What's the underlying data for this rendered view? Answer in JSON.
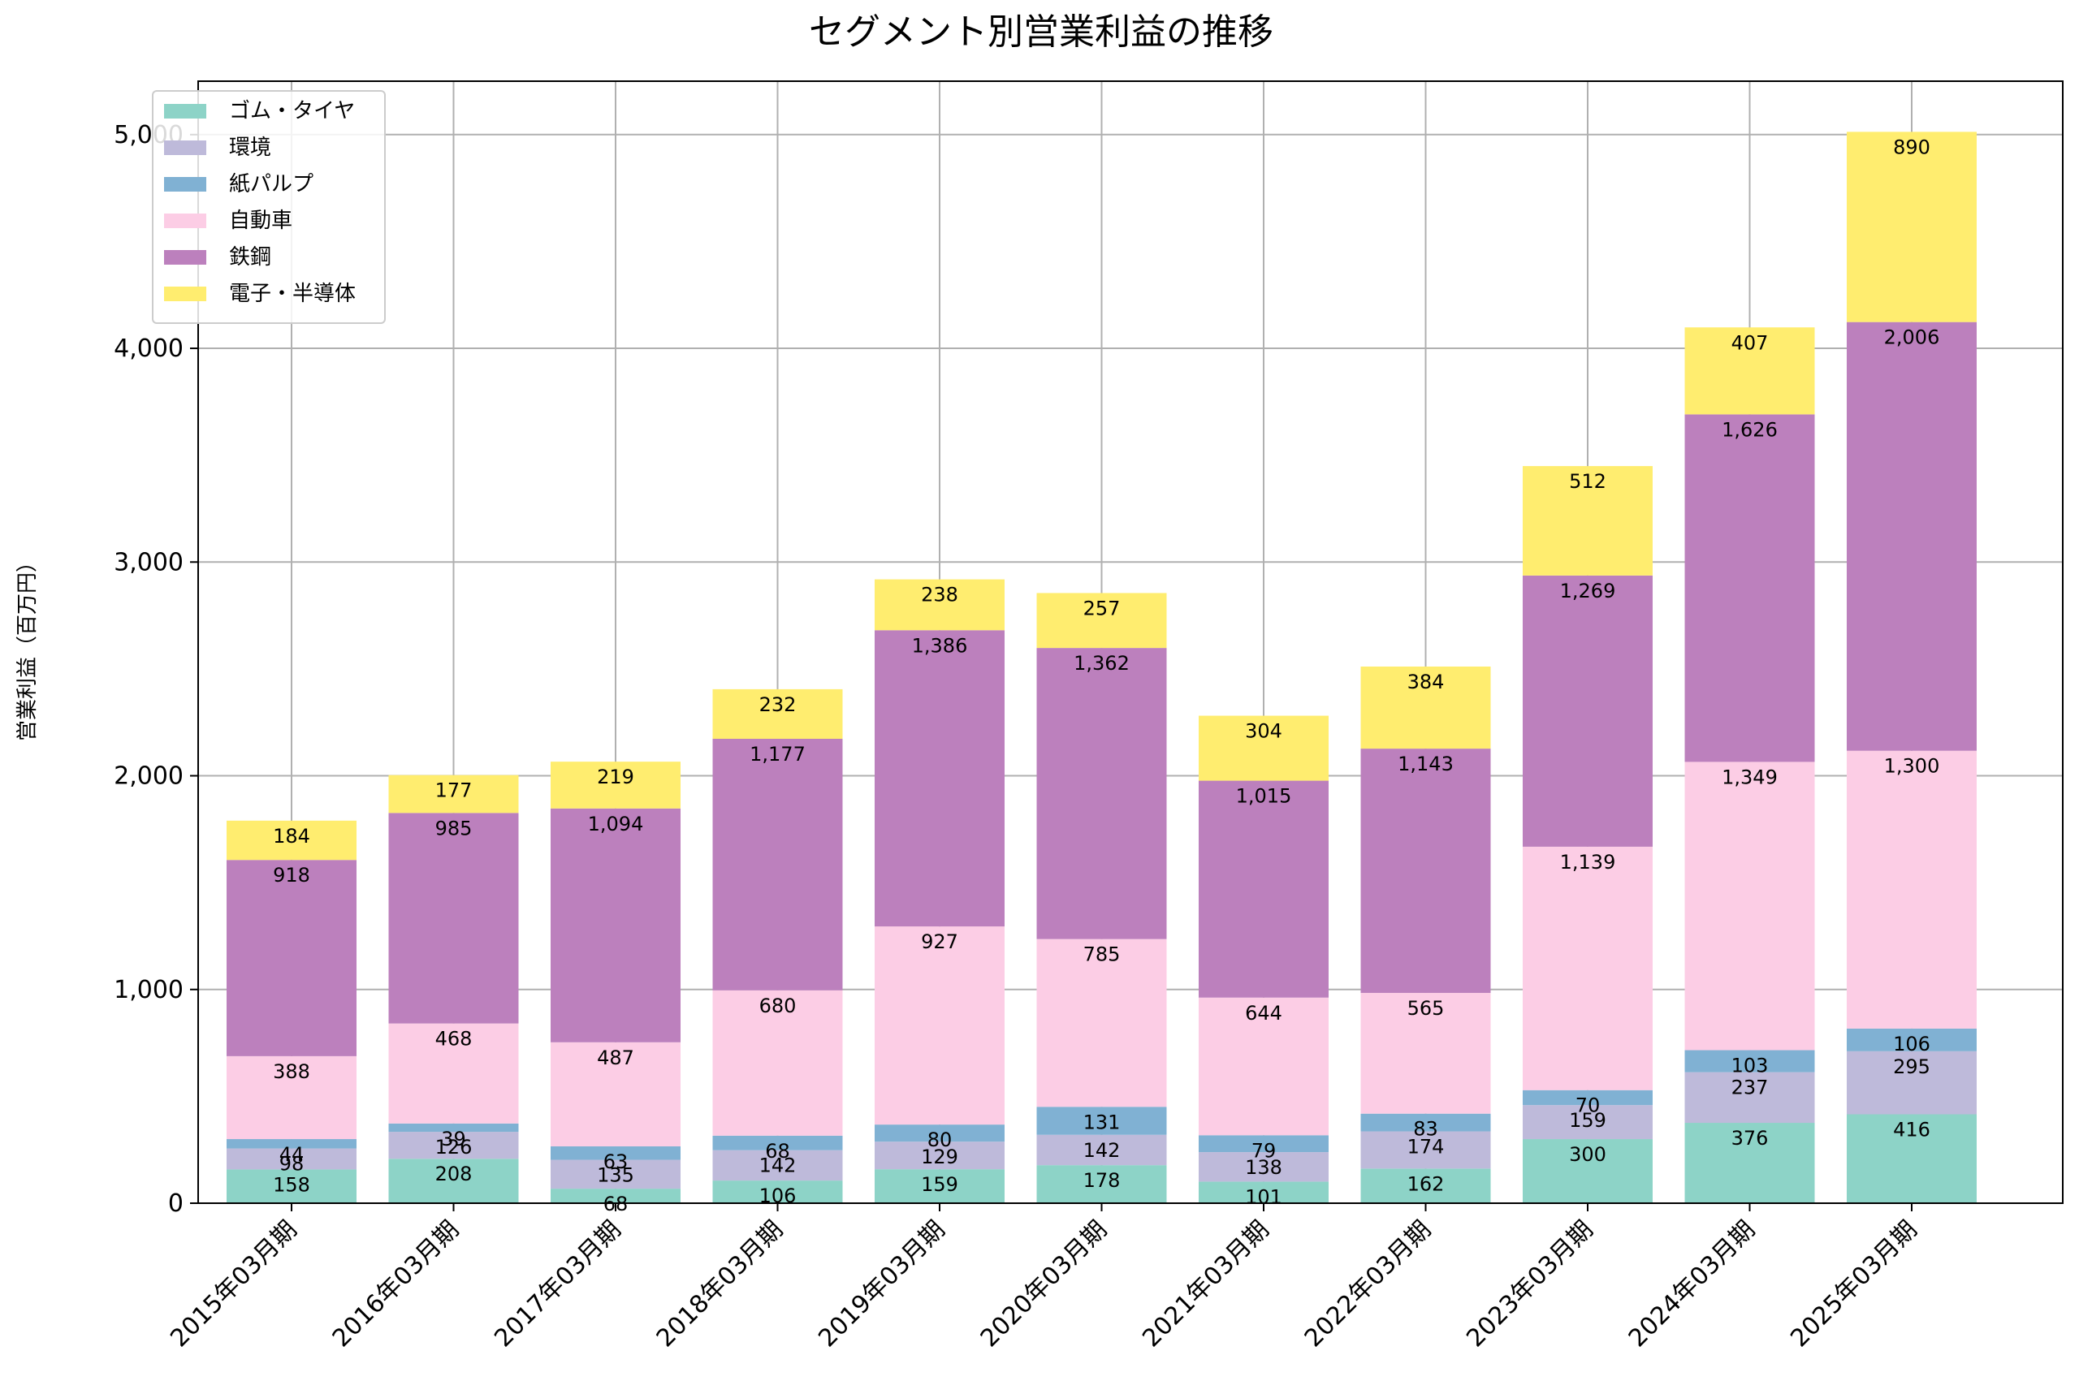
{
  "chart_data": {
    "type": "bar",
    "stacked": true,
    "title": "セグメント別営業利益の推移",
    "xlabel": "",
    "ylabel": "営業利益（百万円）",
    "ylim": [
      0,
      5250
    ],
    "yticks": [
      0,
      1000,
      2000,
      3000,
      4000,
      5000
    ],
    "ytick_labels": [
      "0",
      "1,000",
      "2,000",
      "3,000",
      "4,000",
      "5,000"
    ],
    "grid": true,
    "legend_position": "top-left",
    "categories": [
      "2015年03月期",
      "2016年03月期",
      "2017年03月期",
      "2018年03月期",
      "2019年03月期",
      "2020年03月期",
      "2021年03月期",
      "2022年03月期",
      "2023年03月期",
      "2024年03月期",
      "2025年03月期"
    ],
    "series": [
      {
        "name": "ゴム・タイヤ",
        "color": "#8dd3c7",
        "values": [
          158,
          208,
          68,
          106,
          159,
          178,
          101,
          162,
          300,
          376,
          416
        ],
        "labels": [
          "158",
          "208",
          "68",
          "106",
          "159",
          "178",
          "101",
          "162",
          "300",
          "376",
          "416"
        ]
      },
      {
        "name": "環境",
        "color": "#bebada",
        "values": [
          98,
          126,
          135,
          142,
          129,
          142,
          138,
          174,
          159,
          237,
          295
        ],
        "labels": [
          "98",
          "126",
          "135",
          "142",
          "129",
          "142",
          "138",
          "174",
          "159",
          "237",
          "295"
        ]
      },
      {
        "name": "紙パルプ",
        "color": "#80b1d3",
        "values": [
          44,
          39,
          63,
          68,
          80,
          131,
          79,
          83,
          70,
          103,
          106
        ],
        "labels": [
          "44",
          "39",
          "63",
          "68",
          "80",
          "131",
          "79",
          "83",
          "70",
          "103",
          "106"
        ]
      },
      {
        "name": "自動車",
        "color": "#fccde5",
        "values": [
          388,
          468,
          487,
          680,
          927,
          785,
          644,
          565,
          1139,
          1349,
          1300
        ],
        "labels": [
          "388",
          "468",
          "487",
          "680",
          "927",
          "785",
          "644",
          "565",
          "1,139",
          "1,349",
          "1,300"
        ]
      },
      {
        "name": "鉄鋼",
        "color": "#bc80bd",
        "values": [
          918,
          985,
          1094,
          1177,
          1386,
          1362,
          1015,
          1143,
          1269,
          1626,
          2006
        ],
        "labels": [
          "918",
          "985",
          "1,094",
          "1,177",
          "1,386",
          "1,362",
          "1,015",
          "1,143",
          "1,269",
          "1,626",
          "2,006"
        ]
      },
      {
        "name": "電子・半導体",
        "color": "#ffed6f",
        "values": [
          184,
          177,
          219,
          232,
          238,
          257,
          304,
          384,
          512,
          407,
          890
        ],
        "labels": [
          "184",
          "177",
          "219",
          "232",
          "238",
          "257",
          "304",
          "384",
          "512",
          "407",
          "890"
        ]
      }
    ]
  }
}
